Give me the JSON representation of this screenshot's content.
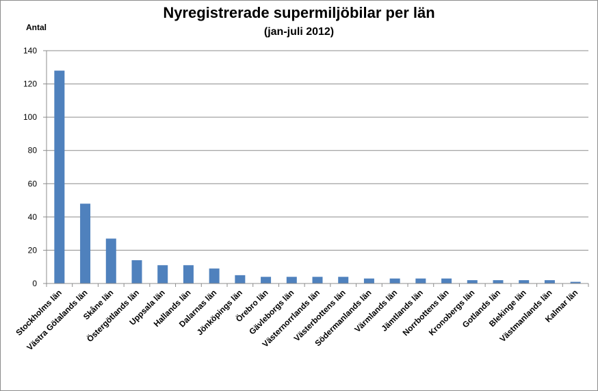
{
  "chart_data": {
    "type": "bar",
    "title": "Nyregistrerade supermiljöbilar per län",
    "subtitle": "(jan-juli 2012)",
    "ylabel": "Antal",
    "xlabel": "",
    "ylim": [
      0,
      140
    ],
    "yticks": [
      0,
      20,
      40,
      60,
      80,
      100,
      120,
      140
    ],
    "grid": true,
    "bar_color": "#4f81bd",
    "categories": [
      "Stockholms län",
      "Västra Götalands län",
      "Skåne län",
      "Östergötlands län",
      "Uppsala län",
      "Hallands län",
      "Dalarnas län",
      "Jönköpings län",
      "Örebro län",
      "Gävleborgs län",
      "Västernorrlands län",
      "Västerbottens län",
      "Södermanlands län",
      "Värmlands län",
      "Jämtlands län",
      "Norrbottens län",
      "Kronobergs län",
      "Gotlands län",
      "Blekinge län",
      "Västmanlands län",
      "Kalmar län"
    ],
    "values": [
      128,
      48,
      27,
      14,
      11,
      11,
      9,
      5,
      4,
      4,
      4,
      4,
      3,
      3,
      3,
      3,
      2,
      2,
      2,
      2,
      1
    ]
  }
}
